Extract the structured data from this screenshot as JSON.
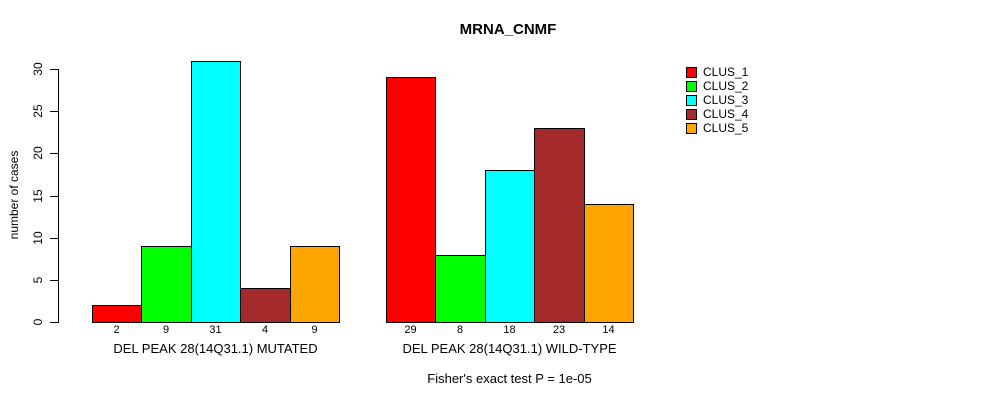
{
  "chart_data": {
    "type": "bar",
    "title": "MRNA_CNMF",
    "ylabel": "number of cases",
    "xlabel": "",
    "ylim": [
      0,
      30
    ],
    "yticks": [
      0,
      5,
      10,
      15,
      20,
      25,
      30
    ],
    "grid": false,
    "legend_position": "right",
    "value_labels_under_bars": true,
    "categories": [
      "DEL PEAK 28(14Q31.1) MUTATED",
      "DEL PEAK 28(14Q31.1) WILD-TYPE"
    ],
    "series": [
      {
        "name": "CLUS_1",
        "color": "#FF0000",
        "values": [
          2,
          29
        ]
      },
      {
        "name": "CLUS_2",
        "color": "#00FF00",
        "values": [
          9,
          8
        ]
      },
      {
        "name": "CLUS_3",
        "color": "#00FFFF",
        "values": [
          31,
          18
        ]
      },
      {
        "name": "CLUS_4",
        "color": "#A52A2A",
        "values": [
          4,
          23
        ]
      },
      {
        "name": "CLUS_5",
        "color": "#FFA500",
        "values": [
          9,
          14
        ]
      }
    ],
    "footnote": "Fisher's exact test P = 1e-05"
  }
}
